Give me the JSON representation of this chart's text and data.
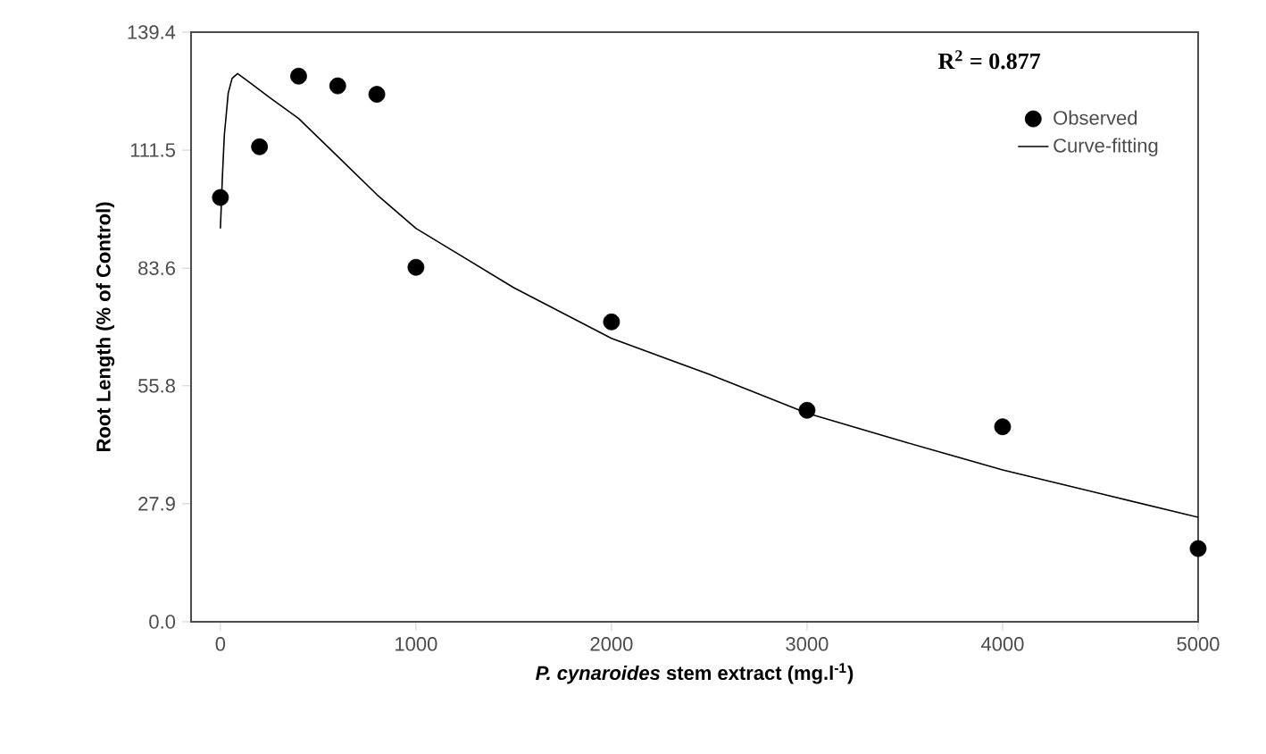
{
  "chart_data": {
    "type": "scatter",
    "xlabel": "*P. cynaroides* stem extract (mg.l$^{-1}$)",
    "ylabel": "Root Length (% of Control)",
    "annotations": [
      "R$^{2}$ = 0.877"
    ],
    "xlim": [
      -150,
      5000
    ],
    "xticks": [
      0,
      1000,
      2000,
      3000,
      4000,
      5000
    ],
    "ylim": [
      0,
      139.4
    ],
    "yticks": [
      {
        "value": 0,
        "label": "0.0"
      },
      27.9,
      55.8,
      83.6,
      111.5,
      139.4
    ],
    "legend": "top right",
    "series": [
      {
        "name": "Observed",
        "marker": "circle",
        "color": "#000000",
        "x": [
          0,
          200,
          400,
          600,
          800,
          1000,
          2000,
          3000,
          4000,
          5000
        ],
        "values": [
          100.3,
          112.3,
          129.0,
          126.7,
          124.7,
          83.8,
          70.9,
          50.0,
          46.1,
          17.3
        ]
      },
      {
        "name": "Curve-fitting",
        "type": "line",
        "marker": "none",
        "color": "#000000",
        "x": [
          0,
          10,
          20,
          40,
          60,
          88,
          150,
          250,
          400,
          600,
          800,
          1000,
          1500,
          2000,
          2500,
          3000,
          3500,
          4000,
          4500,
          5000
        ],
        "values": [
          93,
          105,
          115,
          125,
          128.5,
          129.6,
          127.5,
          124,
          119,
          110,
          101,
          93,
          79,
          67,
          58.5,
          49.3,
          42.5,
          35.9,
          30.3,
          24.7
        ]
      }
    ]
  }
}
